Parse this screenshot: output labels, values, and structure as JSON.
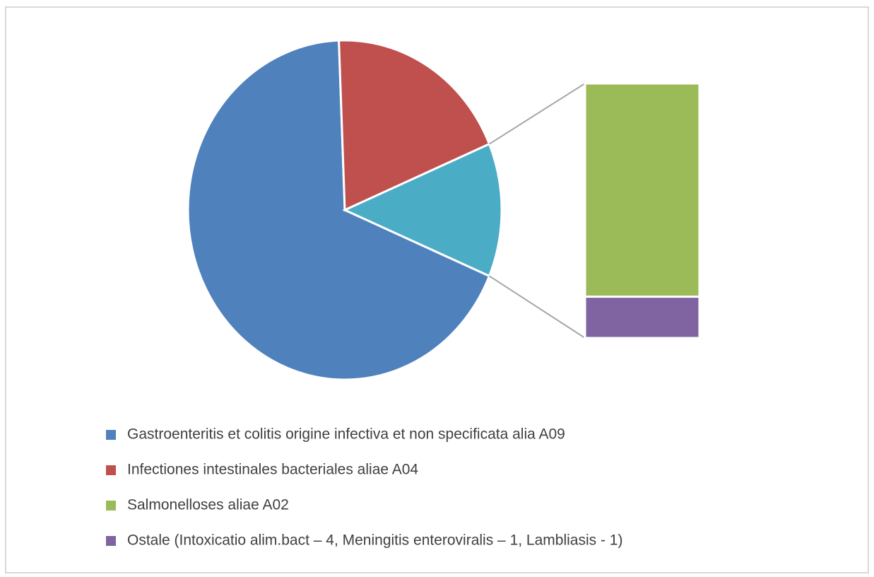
{
  "chart_data": {
    "type": "pie_of_bar",
    "categories": [
      "Gastroenteritis et colitis origine infectiva et non specificata alia A09",
      "Infectiones intestinales bacteriales aliae A04",
      "Salmonelloses aliae A02",
      "Ostale (Intoxicatio alim.bact – 4, Meningitis enteroviralis – 1, Lambliasis - 1)"
    ],
    "values": [
      198,
      56,
      31,
      6
    ],
    "colors": [
      "#4f81bd",
      "#c0504d",
      "#9bbb59",
      "#8064a2"
    ],
    "other_color": "#4bacc6",
    "secondary_count": 2
  }
}
